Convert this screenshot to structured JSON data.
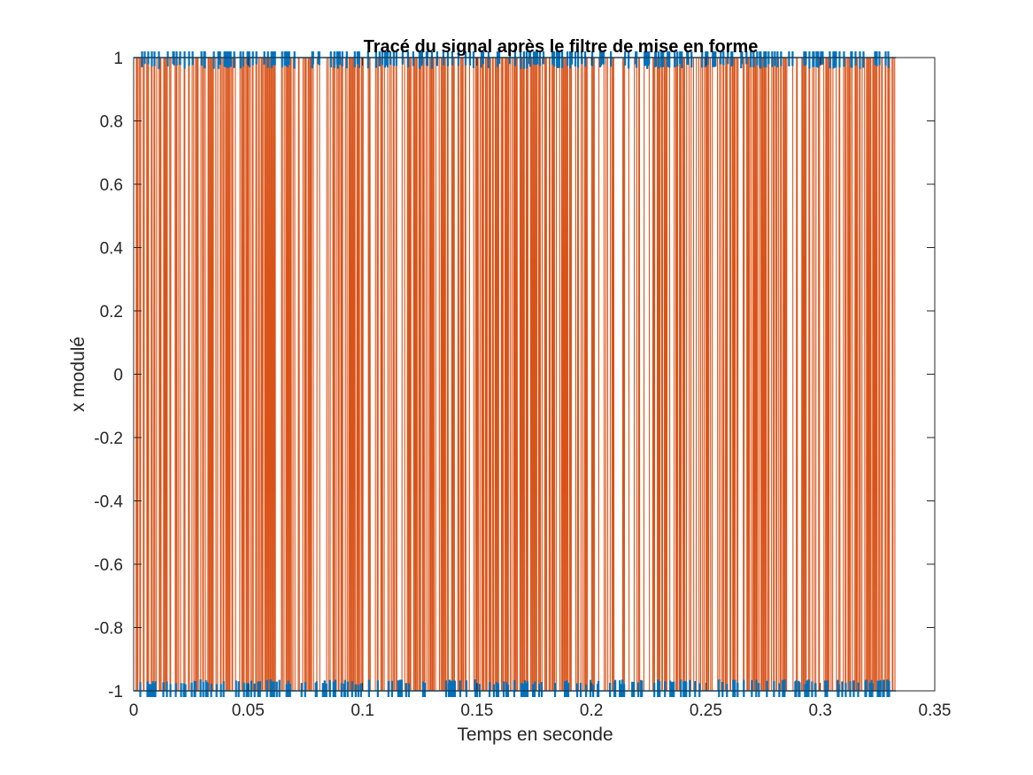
{
  "chart_data": {
    "type": "line",
    "title": "Tracé du signal après le filtre de mise en forme",
    "xlabel": "Temps en seconde",
    "ylabel": "x modulé",
    "xlim": [
      0,
      0.35
    ],
    "ylim": [
      -1,
      1
    ],
    "xticks": [
      "0",
      "0.05",
      "0.1",
      "0.15",
      "0.2",
      "0.25",
      "0.3",
      "0.35"
    ],
    "yticks": [
      "-1",
      "-0.8",
      "-0.6",
      "-0.4",
      "-0.2",
      "0",
      "0.2",
      "0.4",
      "0.6",
      "0.8",
      "1"
    ],
    "grid": false,
    "legend": "none",
    "series": [
      {
        "color": "#0072BD",
        "description": "binary ±1 symbol markers along y = 1 and y = -1",
        "x_range": [
          0,
          0.333
        ],
        "values": [
          1,
          -1
        ]
      },
      {
        "color": "#D95319",
        "description": "shaped bipolar signal switching between +1 and -1",
        "x_range": [
          0,
          0.333
        ],
        "values": [
          1,
          -1
        ]
      }
    ]
  }
}
